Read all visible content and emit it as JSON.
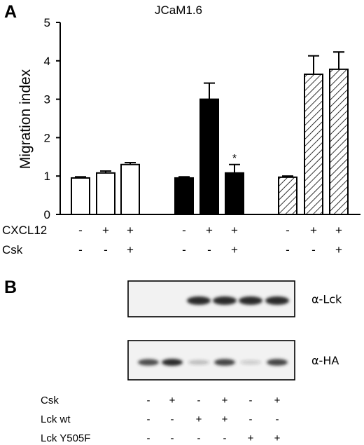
{
  "panel_a": {
    "letter": "A",
    "chart_data": {
      "type": "bar",
      "title": "JCaM1.6",
      "xlabel": "",
      "ylabel": "Migration index",
      "ylim": [
        0,
        5
      ],
      "yticks": [
        "0",
        "1",
        "2",
        "3",
        "4",
        "5"
      ],
      "groups": [
        {
          "style": "open",
          "bars": [
            {
              "value": 0.95,
              "error": 0.03
            },
            {
              "value": 1.08,
              "error": 0.05
            },
            {
              "value": 1.3,
              "error": 0.05
            }
          ]
        },
        {
          "style": "filled",
          "bars": [
            {
              "value": 0.95,
              "error": 0.03
            },
            {
              "value": 3.0,
              "error": 0.42
            },
            {
              "value": 1.08,
              "error": 0.22,
              "annotation": "*"
            }
          ]
        },
        {
          "style": "hatched",
          "bars": [
            {
              "value": 0.97,
              "error": 0.03
            },
            {
              "value": 3.65,
              "error": 0.48
            },
            {
              "value": 3.78,
              "error": 0.45
            }
          ]
        }
      ],
      "condition_rows": [
        {
          "label": "CXCL12",
          "values": [
            "-",
            "+",
            "+",
            "-",
            "+",
            "+",
            "-",
            "+",
            "+"
          ]
        },
        {
          "label": "Csk",
          "values": [
            "-",
            "-",
            "+",
            "-",
            "-",
            "+",
            "-",
            "-",
            "+"
          ]
        }
      ]
    }
  },
  "panel_b": {
    "letter": "B",
    "blots": [
      {
        "label": "α-Lck",
        "bands": [
          0,
          0,
          1,
          1,
          1,
          1
        ]
      },
      {
        "label": "α-HA",
        "bands": [
          0.8,
          1,
          0.15,
          0.85,
          0.05,
          0.85
        ]
      }
    ],
    "condition_rows": [
      {
        "label": "Csk",
        "values": [
          "-",
          "+",
          "-",
          "+",
          "-",
          "+"
        ]
      },
      {
        "label": "Lck wt",
        "values": [
          "-",
          "-",
          "+",
          "+",
          "-",
          "-"
        ]
      },
      {
        "label": "Lck Y505F",
        "values": [
          "-",
          "-",
          "-",
          "-",
          "+",
          "+"
        ]
      }
    ]
  },
  "colors": {
    "ink": "#000000",
    "band": "#2a2a2a",
    "blot_bg": "#f2f2f2"
  }
}
